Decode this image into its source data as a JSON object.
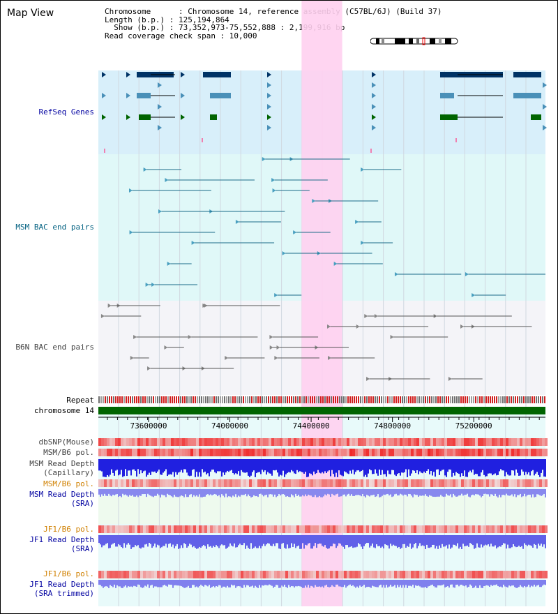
{
  "title": "Map View",
  "info": {
    "chromosome": "Chromosome      : Chromosome 14, reference assembly (C57BL/6J) (Build 37)",
    "length": "Length (b.p.) : 125,194,864",
    "show": "  Show (b.p.) : 73,352,973-75,552,888 : 2,199,916 bp",
    "coverage": "Read coverage check span : 10,000"
  },
  "tracks": {
    "refseq": "RefSeq Genes",
    "msm_bac": "MSM BAC end pairs",
    "b6n_bac": "B6N BAC end pairs",
    "repeat": "Repeat",
    "chrom": "chromosome 14",
    "dbsnp": "dbSNP(Mouse)",
    "msm_pol1": "MSM/B6 pol.",
    "msm_depth_cap_1": "MSM Read Depth",
    "msm_depth_cap_2": "(Capillary)",
    "msm_pol2": "MSM/B6 pol.",
    "msm_depth_sra_1": "MSM Read Depth",
    "msm_depth_sra_2": "(SRA)",
    "jf1_pol1": "JF1/B6 pol.",
    "jf1_depth_1": "JF1 Read Depth",
    "jf1_depth_2": "(SRA)",
    "jf1_pol2": "JF1/B6 pol.",
    "jf1_trim_1": "JF1 Read Depth",
    "jf1_trim_2": "(SRA trimmed)"
  },
  "axis": {
    "ticks": [
      {
        "pos": 73600000,
        "label": "73600000"
      },
      {
        "pos": 74000000,
        "label": "74000000"
      },
      {
        "pos": 74400000,
        "label": "74400000"
      },
      {
        "pos": 74800000,
        "label": "74800000"
      },
      {
        "pos": 75200000,
        "label": "75200000"
      }
    ],
    "view_start": 73352973,
    "view_end": 75552888,
    "highlight": [
      74352973,
      74552888
    ]
  },
  "colors": {
    "label_blue": "#0000a0",
    "label_teal": "#006080",
    "label_gray": "#404040",
    "label_orange": "#d08000",
    "highlight": "#ffd0f0",
    "refseq_bg": "#d8effa",
    "msm_bg": "#e0f8f8",
    "b6n_bg": "#f4f4f8",
    "chrom_green": "#006400"
  }
}
